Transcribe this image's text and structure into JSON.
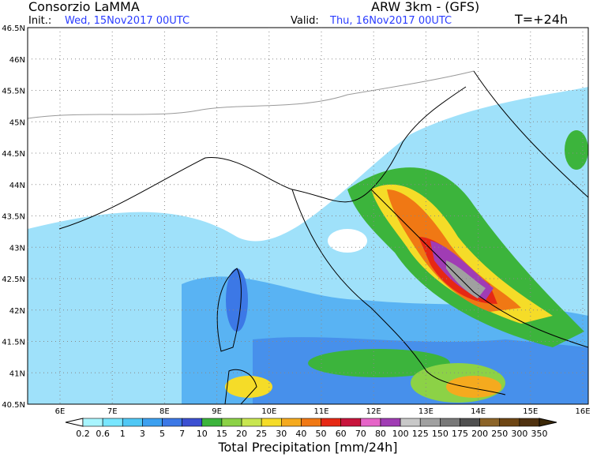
{
  "header": {
    "title": "Consorzio LaMMA",
    "model": "ARW 3km - (GFS)",
    "init_label": "Init.:",
    "init": "Wed, 15Nov2017 00UTC",
    "valid_label": "Valid:",
    "valid": "Thu, 16Nov2017 00UTC",
    "lead": "T=+24h"
  },
  "map": {
    "lat_labels": [
      "46.5N",
      "46N",
      "45.5N",
      "45N",
      "44.5N",
      "44N",
      "43.5N",
      "43N",
      "42.5N",
      "42N",
      "41.5N",
      "41N",
      "40.5N"
    ],
    "lon_labels": [
      "6E",
      "7E",
      "8E",
      "9E",
      "10E",
      "11E",
      "12E",
      "13E",
      "14E",
      "15E",
      "16E"
    ]
  },
  "colorbar": {
    "title": "Total Precipitation [mm/24h]",
    "labels": [
      "0.2",
      "0.6",
      "1",
      "3",
      "5",
      "7",
      "10",
      "15",
      "20",
      "25",
      "30",
      "40",
      "50",
      "60",
      "70",
      "80",
      "100",
      "125",
      "150",
      "175",
      "200",
      "250",
      "300",
      "350"
    ],
    "under_color": "#ffffff",
    "colors": [
      "#a8f5ff",
      "#78e6ff",
      "#50c8f5",
      "#3ca0f0",
      "#3c78e6",
      "#3c50d2",
      "#3cb43c",
      "#8cd246",
      "#c8e650",
      "#f5dc28",
      "#f5aa1e",
      "#f07814",
      "#e62814",
      "#c8143c",
      "#e664c8",
      "#a03cb4",
      "#c8c8c8",
      "#a0a0a0",
      "#787878",
      "#505050",
      "#8c6428",
      "#6e4614",
      "#503210"
    ],
    "over_color": "#3c2808"
  }
}
